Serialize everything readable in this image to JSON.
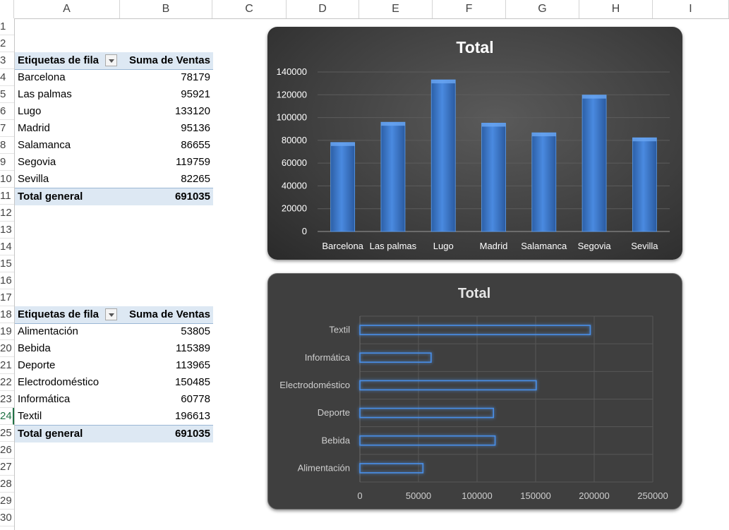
{
  "sheet": {
    "columns": [
      "A",
      "B",
      "C",
      "D",
      "E",
      "F",
      "G",
      "H",
      "I"
    ],
    "rows": [
      "1",
      "2",
      "3",
      "4",
      "5",
      "6",
      "7",
      "8",
      "9",
      "10",
      "11",
      "12",
      "13",
      "14",
      "15",
      "16",
      "17",
      "18",
      "19",
      "20",
      "21",
      "22",
      "23",
      "24",
      "25",
      "26",
      "27",
      "28",
      "29",
      "30"
    ],
    "selected_row": "24"
  },
  "pivot1": {
    "header_label": "Etiquetas de fila",
    "header_value": "Suma de Ventas",
    "rows": [
      {
        "label": "Barcelona",
        "value": "78179"
      },
      {
        "label": "Las palmas",
        "value": "95921"
      },
      {
        "label": "Lugo",
        "value": "133120"
      },
      {
        "label": "Madrid",
        "value": "95136"
      },
      {
        "label": "Salamanca",
        "value": "86655"
      },
      {
        "label": "Segovia",
        "value": "119759"
      },
      {
        "label": "Sevilla",
        "value": "82265"
      }
    ],
    "total_label": "Total general",
    "total_value": "691035"
  },
  "pivot2": {
    "header_label": "Etiquetas de fila",
    "header_value": "Suma de Ventas",
    "rows": [
      {
        "label": "Alimentación",
        "value": "53805"
      },
      {
        "label": "Bebida",
        "value": "115389"
      },
      {
        "label": "Deporte",
        "value": "113965"
      },
      {
        "label": "Electrodoméstico",
        "value": "150485"
      },
      {
        "label": "Informática",
        "value": "60778"
      },
      {
        "label": "Textil",
        "value": "196613"
      }
    ],
    "total_label": "Total general",
    "total_value": "691035"
  },
  "colors": {
    "bar_fill": "#3d78c6",
    "bar_outline": "#4f93ea",
    "pivot_header": "#dde8f3"
  },
  "chart_data": [
    {
      "type": "bar",
      "title": "Total",
      "categories": [
        "Barcelona",
        "Las palmas",
        "Lugo",
        "Madrid",
        "Salamanca",
        "Segovia",
        "Sevilla"
      ],
      "values": [
        78179,
        95921,
        133120,
        95136,
        86655,
        119759,
        82265
      ],
      "ylim": [
        0,
        140000
      ],
      "yticks": [
        "0",
        "20000",
        "40000",
        "60000",
        "80000",
        "100000",
        "120000",
        "140000"
      ],
      "grid": true,
      "legend": "none"
    },
    {
      "type": "bar",
      "orientation": "horizontal",
      "title": "Total",
      "categories": [
        "Alimentación",
        "Bebida",
        "Deporte",
        "Electrodoméstico",
        "Informática",
        "Textil"
      ],
      "values": [
        53805,
        115389,
        113965,
        150485,
        60778,
        196613
      ],
      "xlim": [
        0,
        250000
      ],
      "xticks": [
        "0",
        "50000",
        "100000",
        "150000",
        "200000",
        "250000"
      ],
      "grid": true,
      "legend": "none"
    }
  ]
}
